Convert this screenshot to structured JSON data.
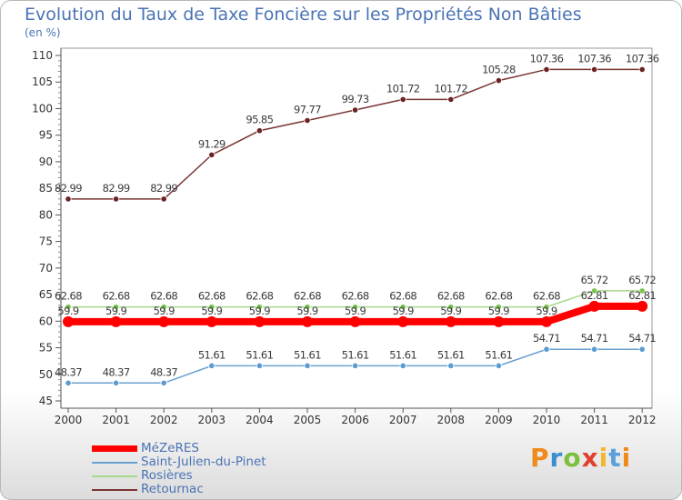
{
  "title": "Evolution du Taux de Taxe Foncière sur les Propriétés Non Bâties",
  "unit": "(en %)",
  "brand": "Proxiti",
  "chart_data": {
    "type": "line",
    "title": "Evolution du Taux de Taxe Foncière sur les Propriétés Non Bâties",
    "ylabel": "(en %)",
    "xlabel": "",
    "x": [
      "2000",
      "2001",
      "2002",
      "2003",
      "2004",
      "2005",
      "2006",
      "2007",
      "2008",
      "2009",
      "2010",
      "2011",
      "2012"
    ],
    "ylim": [
      45,
      110
    ],
    "yticks": [
      45,
      50,
      55,
      60,
      65,
      70,
      75,
      80,
      85,
      90,
      95,
      100,
      105,
      110
    ],
    "grid": false,
    "legend_position": "bottom-left",
    "series": [
      {
        "name": "MéZeRES",
        "color": "#ff0000",
        "values": [
          59.9,
          59.9,
          59.9,
          59.9,
          59.9,
          59.9,
          59.9,
          59.9,
          59.9,
          59.9,
          59.9,
          62.81,
          62.81
        ],
        "labels": [
          "59.9",
          "59.9",
          "59.9",
          "59.9",
          "59.9",
          "59.9",
          "59.9",
          "59.9",
          "59.9",
          "59.9",
          "59.9",
          "62.81",
          "62.81"
        ]
      },
      {
        "name": "Saint-Julien-du-Pinet",
        "color": "#6aa1cf",
        "values": [
          48.37,
          48.37,
          48.37,
          51.61,
          51.61,
          51.61,
          51.61,
          51.61,
          51.61,
          51.61,
          54.71,
          54.71,
          54.71
        ],
        "labels": [
          "48.37",
          "48.37",
          "48.37",
          "51.61",
          "51.61",
          "51.61",
          "51.61",
          "51.61",
          "51.61",
          "51.61",
          "54.71",
          "54.71",
          "54.71"
        ]
      },
      {
        "name": "Rosières",
        "color": "#a6d98a",
        "values": [
          62.68,
          62.68,
          62.68,
          62.68,
          62.68,
          62.68,
          62.68,
          62.68,
          62.68,
          62.68,
          62.68,
          65.72,
          65.72
        ],
        "labels": [
          "62.68",
          "62.68",
          "62.68",
          "62.68",
          "62.68",
          "62.68",
          "62.68",
          "62.68",
          "62.68",
          "62.68",
          "62.68",
          "65.72",
          "65.72"
        ]
      },
      {
        "name": "Retournac",
        "color": "#7b3434",
        "values": [
          82.99,
          82.99,
          82.99,
          91.29,
          95.85,
          97.77,
          99.73,
          101.72,
          101.72,
          105.28,
          107.36,
          107.36,
          107.36
        ],
        "labels": [
          "82.99",
          "82.99",
          "82.99",
          "91.29",
          "95.85",
          "97.77",
          "99.73",
          "101.72",
          "101.72",
          "105.28",
          "107.36",
          "107.36",
          "107.36"
        ]
      }
    ]
  }
}
